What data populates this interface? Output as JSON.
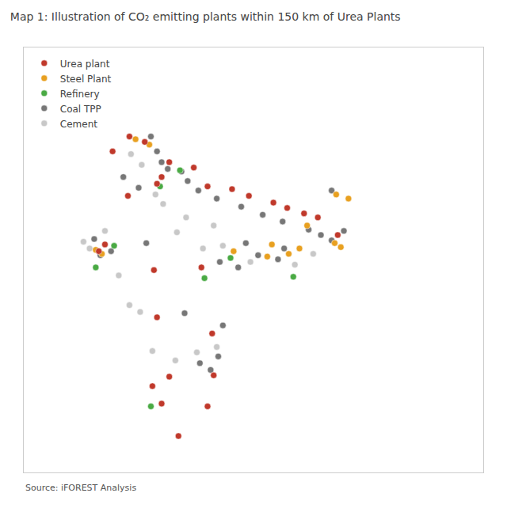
{
  "chart_data": {
    "type": "scatter",
    "title": "Map 1: Illustration of CO₂ emitting plants within 150 km of Urea Plants",
    "annotations": [
      "Source: iFOREST Analysis"
    ],
    "xlim": [
      68.0,
      98.0
    ],
    "ylim": [
      6.0,
      37.5
    ],
    "tick_labels": false,
    "grid": false,
    "legend": "upper left",
    "marker": "circle",
    "series": [
      {
        "name": "Urea plant",
        "color": "#c0392b",
        "x": [
          74.9,
          75.9,
          73.8,
          77.5,
          79.1,
          77.0,
          76.7,
          74.8,
          80.0,
          81.6,
          82.7,
          84.3,
          85.2,
          86.3,
          87.2,
          88.5,
          72.9,
          73.3,
          76.5,
          79.6,
          76.7,
          80.3,
          77.5,
          76.4,
          80.4,
          77.0,
          80.0,
          78.1
        ],
        "values": [
          30.9,
          30.5,
          29.8,
          29.0,
          28.6,
          27.9,
          27.4,
          26.5,
          27.2,
          27.0,
          26.5,
          26.0,
          25.6,
          25.2,
          24.9,
          23.6,
          22.4,
          22.9,
          21.0,
          21.2,
          17.5,
          16.3,
          13.1,
          12.4,
          13.2,
          11.1,
          10.9,
          8.7
        ]
      },
      {
        "name": "Steel Plant",
        "color": "#e8a020",
        "x": [
          85.3,
          86.0,
          84.2,
          83.9,
          72.7,
          73.1,
          75.3,
          76.2,
          88.3,
          88.7,
          86.5,
          81.7,
          88.4,
          89.2
        ],
        "values": [
          22.2,
          22.6,
          22.9,
          22.0,
          22.5,
          22.2,
          30.7,
          30.3,
          23.0,
          22.7,
          24.3,
          22.4,
          26.6,
          26.3
        ]
      },
      {
        "name": "Refinery",
        "color": "#4aaa44",
        "x": [
          72.7,
          73.9,
          85.6,
          79.8,
          76.9,
          81.5,
          76.3,
          78.2
        ],
        "values": [
          21.2,
          22.8,
          20.5,
          20.4,
          27.2,
          21.9,
          10.9,
          28.4
        ]
      },
      {
        "name": "Coal TPP",
        "color": "#777777",
        "x": [
          76.3,
          76.7,
          75.5,
          77.4,
          78.7,
          79.4,
          80.6,
          82.2,
          83.6,
          84.9,
          86.6,
          87.4,
          88.1,
          88.9,
          85.0,
          83.3,
          82.5,
          80.8,
          76.0,
          73.0,
          72.6,
          73.7,
          74.5,
          78.3,
          77.0,
          81.0,
          78.5,
          80.7,
          79.5,
          80.2,
          82.0,
          84.6,
          88.1
        ],
        "values": [
          30.9,
          29.8,
          27.1,
          28.5,
          27.6,
          26.9,
          26.3,
          25.7,
          25.1,
          24.6,
          24.0,
          23.6,
          23.2,
          23.9,
          22.6,
          22.1,
          23.0,
          21.6,
          23.0,
          22.1,
          23.3,
          22.4,
          27.9,
          28.3,
          29.0,
          16.9,
          17.8,
          14.6,
          14.1,
          13.6,
          21.2,
          21.8,
          26.9
        ]
      },
      {
        "name": "Cement",
        "color": "#c8c8c8",
        "x": [
          75.0,
          75.7,
          76.6,
          77.1,
          78.6,
          80.4,
          79.7,
          82.8,
          85.7,
          86.9,
          72.3,
          71.9,
          73.3,
          74.2,
          74.9,
          75.6,
          76.4,
          77.9,
          79.3,
          80.6,
          78.0,
          81.0
        ],
        "values": [
          29.6,
          28.8,
          26.6,
          25.9,
          24.9,
          24.3,
          22.6,
          21.6,
          21.4,
          22.2,
          22.6,
          23.1,
          23.9,
          20.6,
          18.4,
          17.9,
          15.0,
          14.3,
          14.9,
          15.3,
          23.8,
          22.8
        ]
      }
    ]
  }
}
